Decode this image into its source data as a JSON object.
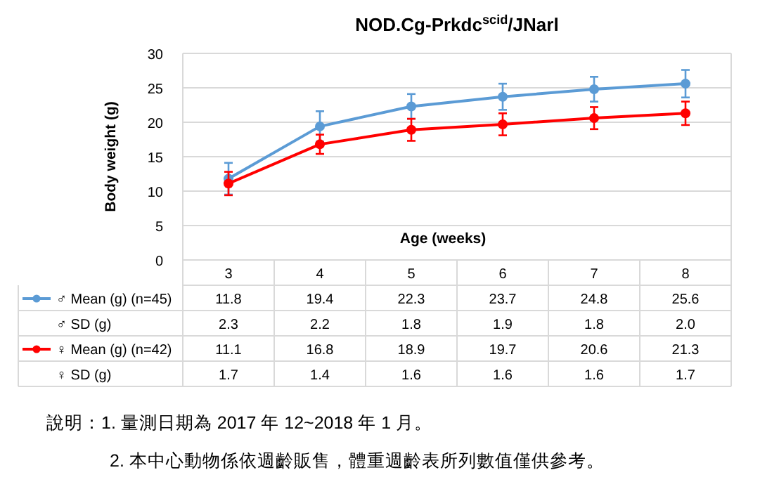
{
  "chart_data": {
    "type": "line",
    "title": "NOD.Cg-Prkdc$^{scid}$/JNarl",
    "xlabel": "Age (weeks)",
    "ylabel": "Body weight (g)",
    "categories": [
      "3",
      "4",
      "5",
      "6",
      "7",
      "8"
    ],
    "series": [
      {
        "name": "♂ Mean (g) (n=45)",
        "color": "#5b9bd5",
        "values": [
          11.8,
          19.4,
          22.3,
          23.7,
          24.8,
          25.6
        ],
        "errors": [
          2.3,
          2.2,
          1.8,
          1.9,
          1.8,
          2.0
        ]
      },
      {
        "name": "♀ Mean (g) (n=42)",
        "color": "#ff0000",
        "values": [
          11.1,
          16.8,
          18.9,
          19.7,
          20.6,
          21.3
        ],
        "errors": [
          1.7,
          1.4,
          1.6,
          1.6,
          1.6,
          1.7
        ]
      }
    ],
    "ylim": [
      0,
      30
    ],
    "yticks": [
      0,
      5,
      10,
      15,
      20,
      25,
      30
    ],
    "grid": "y",
    "marker": "circle",
    "line_style": "solid",
    "legend": "bottom left",
    "data_labels": true,
    "annotations": [
      "♂ SD (g)",
      "♀ SD (g)",
      "說明：1. 量測日期為 2017 年 12~2018 年 1 月。",
      "2. 本中心動物係依週齡販售，體重週齡表所列數值僅供參考。",
      "2.3",
      "2.2",
      "1.8",
      "1.9",
      "1.8",
      "2.0",
      "1.7",
      "1.4",
      "1.6",
      "1.6",
      "1.6",
      "1.7"
    ]
  }
}
